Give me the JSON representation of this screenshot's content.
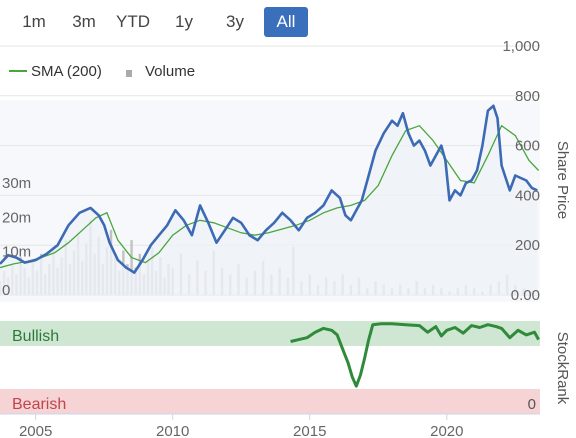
{
  "range_buttons": [
    {
      "label": "1m",
      "active": false
    },
    {
      "label": "3m",
      "active": false
    },
    {
      "label": "YTD",
      "active": false
    },
    {
      "label": "1y",
      "active": false
    },
    {
      "label": "3y",
      "active": false
    },
    {
      "label": "All",
      "active": true
    }
  ],
  "legend": {
    "sma_label": "SMA (200)",
    "volume_label": "Volume"
  },
  "colors": {
    "price_line": "#3d6ab5",
    "sma_line": "#49a63d",
    "volume_bar": "#c2c2c2",
    "price_fill": "#eef1f8",
    "bullish_band": "#cfe7d2",
    "bearish_band": "#f6d3d4",
    "bullish_text": "#2c7a3a",
    "bearish_text": "#c0454c",
    "rank_line": "#2f8a3a",
    "rank_neutral": "#9a9a9a",
    "active_button": "#3a6fbb"
  },
  "chart_data": [
    {
      "type": "line",
      "ylabel": "Share Price",
      "ylim": [
        0,
        1000
      ],
      "yticks": [
        "0.00",
        "200",
        "400",
        "600",
        "800",
        "1,000"
      ],
      "volume_ylim": [
        0,
        35
      ],
      "volume_ticks": [
        "0",
        "10m",
        "20m",
        "30m"
      ],
      "xlim": [
        2003.7,
        2023.4
      ],
      "xticks": [
        "2005",
        "2010",
        "2015",
        "2020"
      ],
      "xtick_values": [
        2005,
        2010,
        2015,
        2020
      ],
      "series": [
        {
          "name": "Price",
          "x": [
            2003.7,
            2004.0,
            2004.3,
            2004.6,
            2005.0,
            2005.4,
            2005.8,
            2006.2,
            2006.6,
            2007.0,
            2007.3,
            2007.5,
            2007.7,
            2008.0,
            2008.3,
            2008.6,
            2008.9,
            2009.2,
            2009.5,
            2009.8,
            2010.1,
            2010.4,
            2010.7,
            2011.0,
            2011.3,
            2011.6,
            2011.9,
            2012.2,
            2012.5,
            2012.8,
            2013.1,
            2013.4,
            2013.7,
            2014.0,
            2014.3,
            2014.6,
            2014.9,
            2015.2,
            2015.5,
            2015.8,
            2016.1,
            2016.3,
            2016.5,
            2016.7,
            2016.9,
            2017.1,
            2017.4,
            2017.7,
            2018.0,
            2018.2,
            2018.4,
            2018.6,
            2018.8,
            2019.0,
            2019.2,
            2019.4,
            2019.6,
            2019.8,
            2019.95,
            2020.1,
            2020.3,
            2020.5,
            2020.7,
            2020.9,
            2021.1,
            2021.3,
            2021.5,
            2021.7,
            2021.85,
            2022.0,
            2022.15,
            2022.3,
            2022.5,
            2022.7,
            2022.9,
            2023.1,
            2023.3
          ],
          "values": [
            125,
            160,
            150,
            130,
            140,
            165,
            200,
            280,
            330,
            350,
            320,
            280,
            210,
            140,
            110,
            90,
            140,
            200,
            240,
            280,
            340,
            300,
            240,
            360,
            290,
            210,
            260,
            310,
            290,
            240,
            220,
            260,
            290,
            330,
            300,
            260,
            310,
            330,
            360,
            420,
            390,
            320,
            300,
            340,
            380,
            460,
            580,
            650,
            700,
            680,
            730,
            650,
            600,
            620,
            580,
            520,
            560,
            600,
            540,
            380,
            420,
            400,
            450,
            460,
            500,
            600,
            740,
            760,
            710,
            520,
            470,
            420,
            480,
            470,
            460,
            430,
            420
          ]
        },
        {
          "name": "SMA (200)",
          "x": [
            2003.7,
            2004.2,
            2004.7,
            2005.2,
            2005.7,
            2006.2,
            2006.7,
            2007.2,
            2007.6,
            2008.0,
            2008.5,
            2009.0,
            2009.5,
            2010.0,
            2010.5,
            2011.0,
            2011.5,
            2012.0,
            2012.5,
            2013.0,
            2013.5,
            2014.0,
            2014.5,
            2015.0,
            2015.5,
            2016.0,
            2016.5,
            2017.0,
            2017.5,
            2018.0,
            2018.5,
            2019.0,
            2019.5,
            2020.0,
            2020.5,
            2021.0,
            2021.5,
            2022.0,
            2022.5,
            2023.0,
            2023.35
          ],
          "values": [
            110,
            125,
            135,
            150,
            170,
            210,
            260,
            310,
            330,
            220,
            150,
            130,
            170,
            240,
            280,
            300,
            290,
            270,
            250,
            240,
            250,
            265,
            280,
            300,
            330,
            350,
            360,
            380,
            440,
            560,
            660,
            680,
            620,
            540,
            460,
            450,
            560,
            680,
            640,
            540,
            500
          ]
        }
      ]
    },
    {
      "type": "bar",
      "series_name": "Volume",
      "x": [
        2003.7,
        2003.85,
        2004.0,
        2004.15,
        2004.3,
        2004.45,
        2004.6,
        2004.75,
        2004.9,
        2005.05,
        2005.2,
        2005.35,
        2005.5,
        2005.65,
        2005.8,
        2005.95,
        2006.1,
        2006.25,
        2006.4,
        2006.55,
        2006.7,
        2006.85,
        2007.0,
        2007.15,
        2007.3,
        2007.45,
        2007.6,
        2007.75,
        2007.9,
        2008.05,
        2008.2,
        2008.35,
        2008.5,
        2008.65,
        2008.8,
        2008.95,
        2009.1,
        2009.25,
        2009.4,
        2009.55,
        2009.7,
        2009.85,
        2010.0,
        2010.3,
        2010.6,
        2010.9,
        2011.2,
        2011.5,
        2011.8,
        2012.1,
        2012.4,
        2012.7,
        2013.0,
        2013.3,
        2013.6,
        2013.9,
        2014.2,
        2014.4,
        2014.7,
        2015.0,
        2015.3,
        2015.6,
        2015.9,
        2016.2,
        2016.5,
        2016.8,
        2017.1,
        2017.4,
        2017.7,
        2018.0,
        2018.3,
        2018.6,
        2018.9,
        2019.2,
        2019.5,
        2019.8,
        2020.1,
        2020.4,
        2020.7,
        2021.0,
        2021.3,
        2021.6,
        2021.9,
        2022.2,
        2022.5,
        2022.8,
        2023.1
      ],
      "values": [
        4,
        7,
        5,
        9,
        6,
        11,
        8,
        5,
        10,
        7,
        12,
        6,
        9,
        14,
        8,
        11,
        16,
        9,
        13,
        18,
        10,
        15,
        22,
        12,
        17,
        9,
        14,
        19,
        11,
        7,
        13,
        9,
        16,
        8,
        12,
        6,
        10,
        14,
        7,
        11,
        5,
        9,
        8,
        12,
        6,
        10,
        7,
        13,
        8,
        6,
        9,
        5,
        7,
        10,
        6,
        8,
        5,
        14,
        4,
        6,
        3,
        5,
        4,
        6,
        3,
        5,
        2,
        4,
        3,
        2,
        3,
        2,
        4,
        2,
        3,
        2,
        1,
        2,
        3,
        2,
        1,
        3,
        4,
        6,
        3,
        2,
        1
      ]
    },
    {
      "type": "line",
      "ylabel": "StockRank",
      "ylim": [
        0,
        100
      ],
      "band_labels": {
        "top": "Bullish",
        "bottom": "Bearish"
      },
      "ytick": "0",
      "series": [
        {
          "name": "StockRank",
          "x": [
            2014.3,
            2014.6,
            2014.9,
            2015.2,
            2015.5,
            2015.8,
            2016.0,
            2016.2,
            2016.4,
            2016.55,
            2016.7,
            2016.85,
            2017.0,
            2017.15,
            2017.3,
            2017.6,
            2018.0,
            2018.5,
            2019.0,
            2019.3,
            2019.6,
            2019.8,
            2020.0,
            2020.3,
            2020.6,
            2020.9,
            2021.2,
            2021.5,
            2021.8,
            2022.0,
            2022.3,
            2022.6,
            2022.9,
            2023.2,
            2023.35
          ],
          "values": [
            78,
            80,
            82,
            88,
            92,
            90,
            85,
            70,
            55,
            40,
            30,
            42,
            60,
            80,
            96,
            97,
            97,
            96,
            95,
            88,
            94,
            84,
            90,
            93,
            87,
            95,
            93,
            96,
            94,
            92,
            82,
            90,
            85,
            88,
            80
          ]
        }
      ]
    }
  ]
}
